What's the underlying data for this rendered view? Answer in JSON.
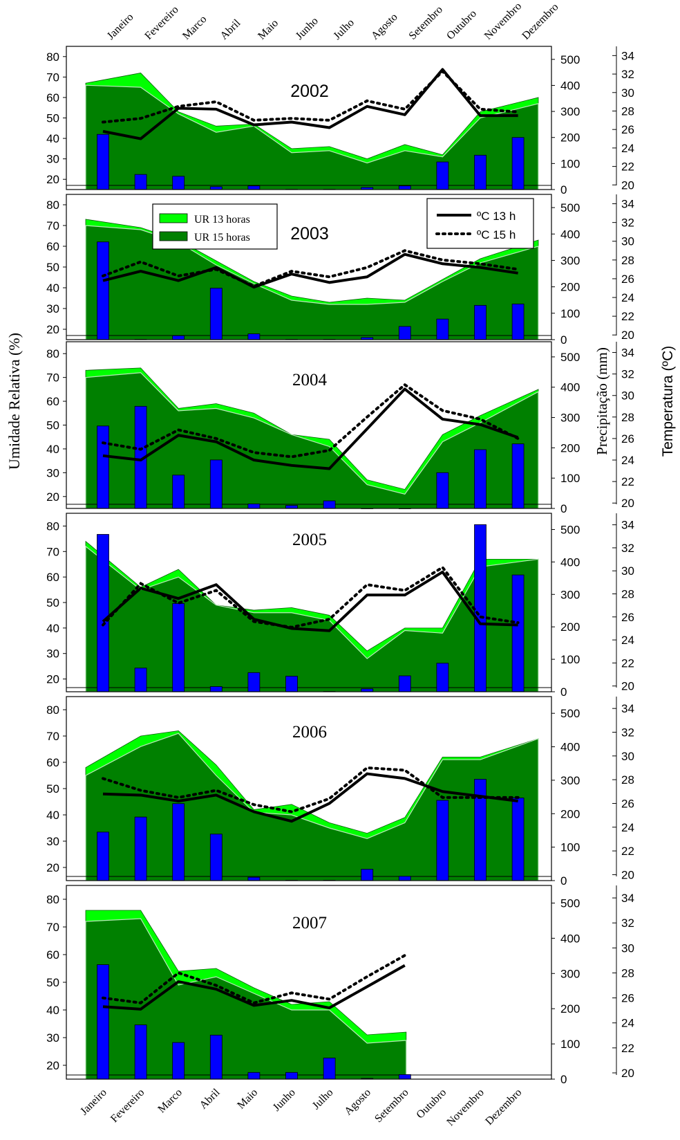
{
  "chart_data": {
    "type": "area",
    "months": [
      "Janeiro",
      "Fevereiro",
      "Marco",
      "Abril",
      "Maio",
      "Junho",
      "Julho",
      "Agosto",
      "Setembro",
      "Outubro",
      "Novembro",
      "Dezembro"
    ],
    "ylabel_left": "Umidade Relativa (%)",
    "ylabel_precip": "Precipitação (mm)",
    "ylabel_temp": "Temperatura (ºC)",
    "rh_range": [
      15,
      85
    ],
    "rh_ticks": [
      "20",
      "30",
      "40",
      "50",
      "60",
      "70",
      "80"
    ],
    "precip_range": [
      0,
      550
    ],
    "precip_ticks": [
      "0",
      "100",
      "200",
      "300",
      "400",
      "500"
    ],
    "temp_range": [
      19.5,
      35
    ],
    "temp_ticks": [
      "20",
      "22",
      "24",
      "26",
      "28",
      "30",
      "32",
      "34"
    ],
    "legend": {
      "rh13": "UR 13 horas",
      "rh15": "UR 15 horas",
      "t13": "ºC 13 h",
      "t15": "ºC 15 h"
    },
    "colors": {
      "rh13": "#00ff00",
      "rh15": "#008000",
      "precip": "#0000ff",
      "line": "#000000"
    },
    "panels": [
      {
        "year": "2002",
        "rh13": [
          67,
          72,
          53,
          46,
          47,
          35,
          36,
          30,
          37,
          32,
          53,
          60
        ],
        "rh15": [
          66,
          65,
          52,
          43,
          46,
          33,
          34,
          28,
          34,
          31,
          50,
          57
        ],
        "precip": [
          212,
          58,
          51,
          11,
          14,
          1,
          1,
          8,
          14,
          106,
          132,
          200
        ],
        "t13": [
          25.8,
          25.0,
          28.3,
          28.2,
          26.5,
          26.8,
          26.2,
          28.5,
          27.6,
          32.5,
          27.5,
          27.5
        ],
        "t15": [
          26.8,
          27.2,
          28.5,
          29.0,
          27.0,
          27.2,
          27.0,
          29.1,
          28.2,
          32.3,
          28.2,
          27.9
        ]
      },
      {
        "year": "2003",
        "rh13": [
          73,
          69,
          63,
          53,
          43,
          36,
          33,
          35,
          34,
          44,
          54,
          63
        ],
        "rh15": [
          70,
          68,
          62,
          51,
          42,
          34,
          32,
          32,
          33,
          43,
          52,
          60
        ],
        "precip": [
          370,
          1,
          15,
          195,
          22,
          1,
          1,
          8,
          50,
          78,
          130,
          135
        ],
        "t13": [
          25.8,
          26.8,
          25.8,
          27.2,
          25.1,
          26.5,
          25.6,
          26.2,
          28.6,
          27.6,
          27.2,
          26.6
        ],
        "t15": [
          26.3,
          27.8,
          26.3,
          27.0,
          25.2,
          26.8,
          26.2,
          27.2,
          29.0,
          28.0,
          27.6,
          27.0
        ]
      },
      {
        "year": "2004",
        "rh13": [
          73,
          74,
          57,
          59,
          55,
          46,
          44,
          27,
          23,
          46,
          54,
          65
        ],
        "rh15": [
          70,
          72,
          56,
          57,
          53,
          46,
          41,
          25,
          21,
          43,
          51,
          64
        ],
        "precip": [
          272,
          337,
          110,
          160,
          15,
          10,
          25,
          0,
          0,
          118,
          194,
          213
        ],
        "t13": [
          24.4,
          24.0,
          26.3,
          25.7,
          24.0,
          23.5,
          23.2,
          26.9,
          30.6,
          27.8,
          27.3,
          26.1
        ],
        "t15": [
          25.6,
          25.0,
          26.8,
          26.0,
          24.7,
          24.3,
          24.9,
          28.0,
          31.0,
          28.6,
          27.8,
          26.0
        ]
      },
      {
        "year": "2005",
        "rh13": [
          74,
          56,
          63,
          49,
          47,
          48,
          45,
          31,
          40,
          40,
          67,
          67
        ],
        "rh15": [
          72,
          55,
          60,
          49,
          46,
          46,
          43,
          28,
          39,
          38,
          64,
          67
        ],
        "precip": [
          485,
          73,
          272,
          16,
          59,
          48,
          1,
          9,
          49,
          88,
          515,
          360
        ],
        "t13": [
          25.6,
          28.5,
          27.6,
          28.8,
          25.8,
          25.0,
          24.8,
          27.9,
          27.9,
          29.9,
          25.4,
          25.3
        ],
        "t15": [
          25.3,
          28.9,
          27.2,
          28.3,
          25.6,
          25.1,
          25.8,
          28.8,
          28.3,
          30.3,
          26.0,
          25.5
        ]
      },
      {
        "year": "2006",
        "rh13": [
          58,
          70,
          72,
          59,
          42,
          44,
          37,
          33,
          39,
          62,
          62,
          69
        ],
        "rh15": [
          55,
          66,
          71,
          55,
          41,
          40,
          35,
          31,
          37,
          61,
          61,
          69
        ],
        "precip": [
          145,
          190,
          230,
          139,
          10,
          1,
          1,
          34,
          13,
          240,
          303,
          247
        ],
        "t13": [
          26.8,
          26.7,
          26.2,
          26.7,
          25.3,
          24.5,
          26.0,
          28.5,
          28.1,
          27.0,
          26.6,
          26.2
        ],
        "t15": [
          28.1,
          27.1,
          26.5,
          27.1,
          25.9,
          25.3,
          26.4,
          29.0,
          28.8,
          26.5,
          26.5,
          26.5
        ]
      },
      {
        "year": "2007",
        "rh13": [
          76,
          76,
          54,
          55,
          48,
          42,
          43,
          31,
          32
        ],
        "rh15": [
          72,
          73,
          49,
          52,
          46,
          40,
          40,
          28,
          29
        ],
        "precip": [
          325,
          154,
          104,
          125,
          19,
          19,
          60,
          2,
          13
        ],
        "t13": [
          25.3,
          25.1,
          27.3,
          26.7,
          25.4,
          25.8,
          25.2,
          26.9,
          28.6
        ],
        "t15": [
          26.0,
          25.6,
          28.0,
          27.0,
          25.6,
          26.4,
          25.9,
          27.7,
          29.4
        ]
      }
    ]
  }
}
